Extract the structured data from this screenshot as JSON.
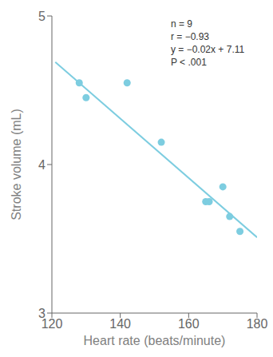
{
  "chart_data": {
    "type": "scatter",
    "xlabel": "Heart rate (beats/minute)",
    "ylabel": "Stroke volume (mL)",
    "series": [
      {
        "type": "scatter",
        "color": "#7dcde0",
        "x": [
          128,
          130,
          142,
          152,
          165,
          166,
          170,
          172,
          175
        ],
        "values": [
          4.55,
          4.45,
          4.55,
          4.15,
          3.75,
          3.75,
          3.85,
          3.65,
          3.55
        ]
      },
      {
        "type": "line",
        "color": "#7dcde0",
        "x": [
          121,
          180
        ],
        "values": [
          4.69,
          3.51
        ]
      }
    ],
    "xlim": [
      120,
      180
    ],
    "ylim": [
      3,
      5
    ],
    "xticks": [
      120,
      140,
      160,
      180
    ],
    "yticks": [
      3,
      4,
      5
    ],
    "annotations": [
      "n = 9",
      "r = −0.93",
      "y = −0.02x + 7.11",
      "P < .001"
    ],
    "grid": false
  }
}
